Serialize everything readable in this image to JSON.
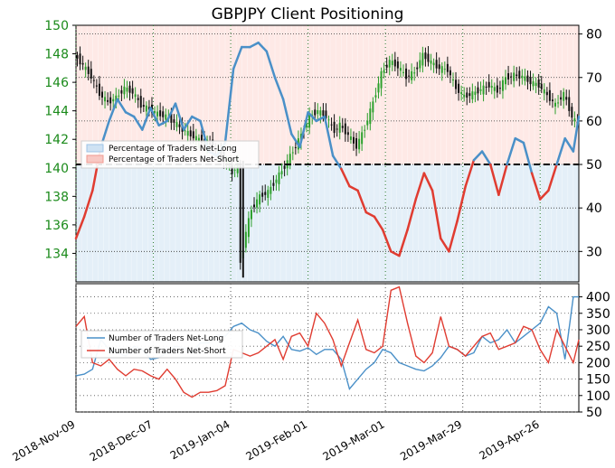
{
  "title": "GBPJPY Client Positioning",
  "colors": {
    "price_left_axis": "#1a8a1a",
    "long_color": "#4a90c8",
    "short_color": "#e03c31",
    "long_fill": "#d8e8f5",
    "short_fill": "#fde0dc",
    "grid": "#2e7d32",
    "candle_up": "#2ca02c",
    "candle_down": "#111111"
  },
  "x_ticks": [
    "2018-Nov-09",
    "2018-Dec-07",
    "2019-Jan-04",
    "2019-Feb-01",
    "2019-Mar-01",
    "2019-Mar-29",
    "2019-Apr-26"
  ],
  "chart_data": [
    {
      "type": "line",
      "panel": "top",
      "title": "GBPJPY Client Positioning",
      "y_left_ticks": [
        "134",
        "136",
        "138",
        "140",
        "142",
        "144",
        "146",
        "148",
        "150"
      ],
      "y_right_ticks": [
        "30",
        "40",
        "50",
        "60",
        "70",
        "80"
      ],
      "y_left_range": [
        132,
        150
      ],
      "y_right_range": [
        23,
        82
      ],
      "reference_line": 50,
      "x_range": [
        0,
        182
      ],
      "legend": {
        "position": "center-left",
        "entries": [
          "Percentage of Traders Net-Long",
          "Percentage of Traders Net-Short"
        ]
      },
      "price_candles_close": [
        [
          0,
          147.9
        ],
        [
          3,
          147.2
        ],
        [
          6,
          146.4
        ],
        [
          9,
          145.2
        ],
        [
          12,
          144.6
        ],
        [
          15,
          144.9
        ],
        [
          18,
          145.6
        ],
        [
          21,
          145.3
        ],
        [
          24,
          144.4
        ],
        [
          27,
          144.1
        ],
        [
          30,
          143.8
        ],
        [
          33,
          143.6
        ],
        [
          36,
          143.2
        ],
        [
          39,
          142.7
        ],
        [
          42,
          142.3
        ],
        [
          45,
          142.0
        ],
        [
          48,
          141.8
        ],
        [
          51,
          141.3
        ],
        [
          54,
          140.6
        ],
        [
          57,
          139.7
        ],
        [
          59,
          140.2
        ],
        [
          60,
          133.3
        ],
        [
          62,
          135.5
        ],
        [
          64,
          137.1
        ],
        [
          67,
          138.0
        ],
        [
          70,
          138.3
        ],
        [
          73,
          139.2
        ],
        [
          76,
          140.1
        ],
        [
          79,
          141.2
        ],
        [
          82,
          142.3
        ],
        [
          85,
          143.6
        ],
        [
          88,
          144.0
        ],
        [
          91,
          143.6
        ],
        [
          94,
          142.6
        ],
        [
          96,
          143.0
        ],
        [
          99,
          142.3
        ],
        [
          102,
          141.5
        ],
        [
          105,
          142.8
        ],
        [
          108,
          144.6
        ],
        [
          111,
          146.6
        ],
        [
          114,
          147.5
        ],
        [
          117,
          147.1
        ],
        [
          120,
          146.4
        ],
        [
          123,
          146.7
        ],
        [
          126,
          147.9
        ],
        [
          129,
          147.4
        ],
        [
          132,
          147.0
        ],
        [
          135,
          146.9
        ],
        [
          138,
          145.6
        ],
        [
          141,
          145.0
        ],
        [
          144,
          145.2
        ],
        [
          147,
          145.5
        ],
        [
          150,
          145.8
        ],
        [
          153,
          145.4
        ],
        [
          156,
          146.3
        ],
        [
          159,
          146.5
        ],
        [
          162,
          146.4
        ],
        [
          165,
          146.0
        ],
        [
          168,
          145.8
        ],
        [
          171,
          145.1
        ],
        [
          174,
          144.4
        ],
        [
          177,
          145.2
        ],
        [
          180,
          143.6
        ],
        [
          182,
          143.0
        ]
      ],
      "series": [
        {
          "name": "Percentage of Traders Net-Long",
          "x": [
            0,
            3,
            6,
            9,
            12,
            15,
            18,
            21,
            24,
            27,
            30,
            33,
            36,
            39,
            42,
            45,
            48,
            51,
            54,
            57,
            60,
            63,
            66,
            69,
            72,
            75,
            78,
            81,
            84,
            87,
            90,
            93,
            96,
            99,
            102,
            105,
            108,
            111,
            114,
            117,
            120,
            123,
            126,
            129,
            132,
            135,
            138,
            141,
            144,
            147,
            150,
            153,
            156,
            159,
            162,
            165,
            168,
            171,
            174,
            177,
            180,
            182
          ],
          "y": [
            33,
            38,
            44,
            54,
            60,
            65,
            62,
            61,
            58,
            63,
            59,
            60,
            64,
            58,
            61,
            60,
            53,
            52,
            55,
            72,
            77,
            77,
            78,
            76,
            70,
            65,
            57,
            54,
            62,
            60,
            61,
            52,
            49,
            45,
            44,
            39,
            38,
            35,
            30,
            29,
            35,
            42,
            48,
            44,
            33,
            30,
            37,
            45,
            51,
            53,
            50,
            43,
            50,
            56,
            55,
            48,
            42,
            44,
            50,
            56,
            53,
            61
          ],
          "short": [
            67,
            62,
            56,
            46,
            40,
            35,
            38,
            39,
            42,
            37,
            41,
            40,
            36,
            42,
            39,
            40,
            47,
            48,
            45,
            28,
            23,
            23,
            22,
            24,
            30,
            35,
            43,
            46,
            38,
            40,
            39,
            48,
            51,
            55,
            56,
            61,
            62,
            65,
            70,
            71,
            65,
            58,
            52,
            56,
            67,
            70,
            63,
            55,
            49,
            47,
            50,
            57,
            50,
            44,
            45,
            52,
            58,
            56,
            50,
            44,
            47,
            39
          ]
        }
      ]
    },
    {
      "type": "line",
      "panel": "bottom",
      "y_right_ticks": [
        "50",
        "100",
        "150",
        "200",
        "250",
        "300",
        "350",
        "400"
      ],
      "y_range": [
        50,
        440
      ],
      "legend": {
        "position": "center-left",
        "entries": [
          "Number of Traders Net-Long",
          "Number of Traders Net-Short"
        ]
      },
      "series": [
        {
          "name": "Number of Traders Net-Long",
          "x": [
            0,
            3,
            6,
            9,
            12,
            15,
            18,
            21,
            24,
            27,
            30,
            33,
            36,
            39,
            42,
            45,
            48,
            51,
            54,
            57,
            60,
            63,
            66,
            69,
            72,
            75,
            78,
            81,
            84,
            87,
            90,
            93,
            96,
            99,
            102,
            105,
            108,
            111,
            114,
            117,
            120,
            123,
            126,
            129,
            132,
            135,
            138,
            141,
            144,
            147,
            150,
            153,
            156,
            159,
            162,
            165,
            168,
            171,
            174,
            177,
            180,
            182
          ],
          "y": [
            160,
            165,
            180,
            270,
            240,
            230,
            220,
            250,
            240,
            210,
            215,
            230,
            250,
            245,
            230,
            260,
            260,
            285,
            280,
            310,
            320,
            300,
            290,
            265,
            250,
            280,
            240,
            235,
            245,
            225,
            240,
            240,
            210,
            120,
            150,
            180,
            200,
            240,
            230,
            200,
            190,
            180,
            175,
            190,
            215,
            250,
            240,
            220,
            230,
            280,
            260,
            270,
            300,
            260,
            280,
            300,
            320,
            370,
            350,
            210,
            400,
            400
          ]
        },
        {
          "name": "Number of Traders Net-Short",
          "x": [
            0,
            3,
            6,
            9,
            12,
            15,
            18,
            21,
            24,
            27,
            30,
            33,
            36,
            39,
            42,
            45,
            48,
            51,
            54,
            57,
            60,
            63,
            66,
            69,
            72,
            75,
            78,
            81,
            84,
            87,
            90,
            93,
            96,
            99,
            102,
            105,
            108,
            111,
            114,
            117,
            120,
            123,
            126,
            129,
            132,
            135,
            138,
            141,
            144,
            147,
            150,
            153,
            156,
            159,
            162,
            165,
            168,
            171,
            174,
            177,
            180,
            182
          ],
          "y": [
            310,
            340,
            200,
            190,
            210,
            180,
            160,
            180,
            175,
            160,
            150,
            180,
            150,
            110,
            95,
            110,
            110,
            115,
            130,
            240,
            230,
            220,
            230,
            250,
            270,
            210,
            280,
            290,
            250,
            350,
            320,
            270,
            190,
            260,
            330,
            240,
            230,
            250,
            420,
            430,
            320,
            220,
            200,
            230,
            340,
            250,
            240,
            220,
            250,
            280,
            290,
            240,
            250,
            260,
            310,
            300,
            240,
            200,
            300,
            250,
            200,
            270
          ]
        }
      ]
    }
  ]
}
